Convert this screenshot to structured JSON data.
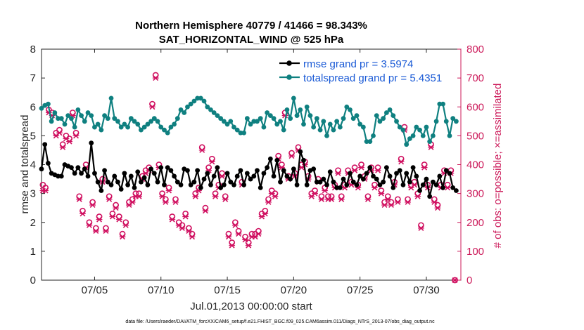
{
  "chart_data": {
    "type": "line",
    "title_line1": "Northern Hemisphere 40779 / 41466 = 98.343%",
    "title_line2": "SAT_HORIZONTAL_WIND @ 525 hPa",
    "ylabel_left": "rmse and totalspread",
    "ylabel_right": "# of obs: o=possible; ×=assimilated",
    "xlabel": "Jul.01,2013 00:00:00 start",
    "footnote": "data file: /Users/raeder/DAI/ATM_forcXX/CAM6_setup/f.e21.FHIST_BGC.f09_025.CAM6assim.011/Diags_NTrS_2013-07/obs_diag_output.nc",
    "x_range": [
      1,
      32.6
    ],
    "xticks": [
      5,
      10,
      15,
      20,
      25,
      30
    ],
    "xtick_labels": [
      "07/05",
      "07/10",
      "07/15",
      "07/20",
      "07/25",
      "07/30"
    ],
    "ylim_left": [
      0,
      8
    ],
    "yticks_left": [
      "0",
      "1",
      "2",
      "3",
      "4",
      "5",
      "6",
      "7",
      "8"
    ],
    "ylim_right": [
      0,
      800
    ],
    "yticks_right": [
      "0",
      "100",
      "200",
      "300",
      "400",
      "500",
      "600",
      "700",
      "800"
    ],
    "colors": {
      "rmse": "#000000",
      "spread": "#0f8080",
      "obs": "#d01060",
      "axis": "#262626"
    },
    "series": [
      {
        "name": "rmse",
        "legend": "rmse grand pr = 3.5974",
        "step": 0.25,
        "x0": 1.0,
        "values": [
          3.85,
          4.7,
          4.05,
          3.7,
          3.65,
          3.6,
          3.6,
          4.0,
          3.95,
          3.9,
          3.7,
          3.9,
          3.7,
          3.85,
          3.6,
          4.75,
          3.7,
          3.4,
          3.1,
          3.8,
          3.4,
          3.3,
          3.6,
          3.4,
          3.15,
          3.7,
          3.3,
          3.6,
          3.2,
          3.75,
          3.4,
          3.55,
          3.3,
          3.85,
          3.7,
          3.4,
          3.9,
          3.3,
          3.9,
          3.8,
          3.6,
          3.4,
          3.3,
          3.85,
          3.8,
          3.3,
          3.4,
          3.8,
          3.2,
          3.5,
          3.7,
          3.3,
          3.6,
          3.9,
          3.2,
          3.3,
          3.7,
          3.4,
          3.3,
          3.6,
          3.8,
          3.3,
          3.7,
          3.5,
          3.6,
          3.8,
          3.2,
          3.7,
          3.9,
          4.2,
          3.6,
          4.15,
          3.4,
          3.8,
          3.6,
          3.5,
          3.85,
          3.3,
          4.45,
          4.15,
          3.3,
          3.8,
          3.85,
          3.4,
          3.4,
          3.5,
          3.3,
          3.75,
          3.4,
          3.2,
          3.2,
          3.5,
          3.3,
          3.7,
          3.4,
          3.3,
          3.6,
          3.5,
          3.7,
          3.9,
          3.6,
          3.5,
          3.3,
          3.4,
          3.9,
          3.6,
          3.2,
          3.7,
          3.8,
          3.3,
          3.7,
          3.4,
          3.9,
          3.6,
          3.1,
          3.3,
          3.5,
          2.9,
          3.4,
          3.3,
          3.6,
          3.2,
          3.8,
          3.7,
          3.2,
          3.1
        ]
      },
      {
        "name": "totalspread",
        "legend": "totalspread grand pr = 5.4351",
        "step": 0.25,
        "x0": 1.0,
        "values": [
          5.95,
          6.05,
          6.1,
          5.5,
          5.8,
          5.6,
          5.6,
          5.4,
          5.7,
          5.6,
          5.3,
          5.9,
          5.7,
          5.5,
          5.8,
          5.7,
          5.3,
          5.4,
          5.2,
          5.7,
          5.6,
          6.3,
          5.6,
          5.5,
          5.3,
          5.4,
          5.3,
          5.6,
          5.5,
          5.4,
          5.2,
          5.3,
          5.4,
          5.5,
          5.6,
          5.5,
          5.3,
          5.2,
          5.1,
          5.3,
          5.4,
          5.6,
          5.9,
          5.8,
          6.0,
          6.1,
          6.2,
          6.3,
          6.3,
          6.2,
          6.0,
          5.9,
          5.8,
          5.7,
          5.6,
          5.5,
          5.4,
          5.5,
          5.3,
          5.2,
          5.1,
          5.1,
          5.6,
          5.4,
          5.5,
          5.5,
          5.6,
          5.3,
          5.8,
          5.7,
          5.6,
          5.4,
          5.5,
          5.2,
          5.9,
          5.6,
          6.3,
          5.7,
          5.9,
          5.4,
          6.0,
          5.7,
          5.3,
          5.6,
          5.2,
          5.5,
          5.0,
          5.4,
          5.2,
          5.5,
          5.3,
          5.6,
          6.0,
          5.9,
          5.6,
          5.7,
          5.4,
          5.3,
          4.8,
          4.8,
          5.0,
          5.7,
          5.5,
          5.6,
          5.8,
          5.9,
          5.7,
          5.5,
          5.3,
          5.2,
          4.7,
          4.9,
          5.0,
          5.3,
          5.2,
          5.0,
          5.3,
          4.8,
          5.0,
          5.5,
          6.1,
          6.1,
          5.5,
          5.0,
          5.6,
          5.5
        ]
      }
    ],
    "obs_possible": {
      "marker": "o",
      "points": [
        [
          1.1,
          330
        ],
        [
          1.3,
          320
        ],
        [
          1.55,
          590
        ],
        [
          1.8,
          580
        ],
        [
          2.1,
          510
        ],
        [
          2.35,
          520
        ],
        [
          2.6,
          470
        ],
        [
          2.85,
          500
        ],
        [
          3.1,
          490
        ],
        [
          3.35,
          580
        ],
        [
          3.6,
          510
        ],
        [
          3.85,
          290
        ],
        [
          4.1,
          240
        ],
        [
          4.35,
          400
        ],
        [
          4.6,
          200
        ],
        [
          4.85,
          270
        ],
        [
          5.1,
          180
        ],
        [
          5.35,
          220
        ],
        [
          5.6,
          350
        ],
        [
          5.85,
          180
        ],
        [
          6.1,
          290
        ],
        [
          6.35,
          230
        ],
        [
          6.6,
          260
        ],
        [
          6.85,
          220
        ],
        [
          7.1,
          160
        ],
        [
          7.35,
          200
        ],
        [
          7.6,
          270
        ],
        [
          7.85,
          280
        ],
        [
          8.1,
          300
        ],
        [
          8.35,
          300
        ],
        [
          8.6,
          360
        ],
        [
          8.85,
          380
        ],
        [
          9.1,
          390
        ],
        [
          9.35,
          610
        ],
        [
          9.6,
          710
        ],
        [
          9.85,
          400
        ],
        [
          10.1,
          300
        ],
        [
          10.35,
          280
        ],
        [
          10.6,
          320
        ],
        [
          10.85,
          220
        ],
        [
          11.1,
          280
        ],
        [
          11.35,
          200
        ],
        [
          11.6,
          190
        ],
        [
          11.85,
          230
        ],
        [
          12.1,
          180
        ],
        [
          12.35,
          160
        ],
        [
          12.6,
          300
        ],
        [
          12.85,
          320
        ],
        [
          13.1,
          460
        ],
        [
          13.35,
          250
        ],
        [
          13.6,
          390
        ],
        [
          13.85,
          420
        ],
        [
          14.1,
          300
        ],
        [
          14.35,
          330
        ],
        [
          14.6,
          370
        ],
        [
          14.85,
          290
        ],
        [
          15.1,
          160
        ],
        [
          15.35,
          130
        ],
        [
          15.6,
          200
        ],
        [
          15.85,
          170
        ],
        [
          16.1,
          340
        ],
        [
          16.35,
          150
        ],
        [
          16.6,
          130
        ],
        [
          16.85,
          160
        ],
        [
          17.1,
          160
        ],
        [
          17.35,
          170
        ],
        [
          17.6,
          230
        ],
        [
          17.85,
          240
        ],
        [
          18.1,
          280
        ],
        [
          18.35,
          310
        ],
        [
          18.6,
          300
        ],
        [
          18.85,
          430
        ],
        [
          19.1,
          400
        ],
        [
          19.35,
          580
        ],
        [
          19.6,
          360
        ],
        [
          19.85,
          440
        ],
        [
          20.1,
          370
        ],
        [
          20.35,
          460
        ],
        [
          20.6,
          400
        ],
        [
          20.85,
          410
        ],
        [
          21.1,
          360
        ],
        [
          21.35,
          300
        ],
        [
          21.6,
          310
        ],
        [
          21.85,
          350
        ],
        [
          22.1,
          290
        ],
        [
          22.35,
          320
        ],
        [
          22.6,
          290
        ],
        [
          22.85,
          290
        ],
        [
          23.1,
          330
        ],
        [
          23.35,
          380
        ],
        [
          23.6,
          290
        ],
        [
          23.85,
          330
        ],
        [
          24.1,
          380
        ],
        [
          24.35,
          340
        ],
        [
          24.6,
          390
        ],
        [
          24.85,
          330
        ],
        [
          25.1,
          400
        ],
        [
          25.35,
          360
        ],
        [
          25.6,
          290
        ],
        [
          25.85,
          390
        ],
        [
          26.1,
          330
        ],
        [
          26.35,
          390
        ],
        [
          26.6,
          310
        ],
        [
          26.85,
          270
        ],
        [
          27.1,
          290
        ],
        [
          27.35,
          270
        ],
        [
          27.6,
          340
        ],
        [
          27.85,
          280
        ],
        [
          28.1,
          420
        ],
        [
          28.35,
          530
        ],
        [
          28.6,
          280
        ],
        [
          28.85,
          330
        ],
        [
          29.1,
          340
        ],
        [
          29.35,
          300
        ],
        [
          29.6,
          190
        ],
        [
          29.85,
          400
        ],
        [
          30.1,
          330
        ],
        [
          30.35,
          470
        ],
        [
          30.6,
          280
        ],
        [
          30.85,
          260
        ],
        [
          31.1,
          330
        ],
        [
          31.35,
          380
        ],
        [
          31.6,
          330
        ],
        [
          31.85,
          380
        ],
        [
          32.15,
          0
        ]
      ]
    },
    "obs_assimilated": {
      "marker": "x",
      "points": [
        [
          1.1,
          310
        ],
        [
          1.3,
          310
        ],
        [
          1.55,
          580
        ],
        [
          1.8,
          570
        ],
        [
          2.1,
          500
        ],
        [
          2.35,
          510
        ],
        [
          2.6,
          460
        ],
        [
          2.85,
          490
        ],
        [
          3.1,
          480
        ],
        [
          3.35,
          570
        ],
        [
          3.6,
          500
        ],
        [
          3.85,
          280
        ],
        [
          4.1,
          230
        ],
        [
          4.35,
          390
        ],
        [
          4.6,
          190
        ],
        [
          4.85,
          260
        ],
        [
          5.1,
          170
        ],
        [
          5.35,
          210
        ],
        [
          5.6,
          340
        ],
        [
          5.85,
          170
        ],
        [
          6.1,
          280
        ],
        [
          6.35,
          220
        ],
        [
          6.6,
          250
        ],
        [
          6.85,
          210
        ],
        [
          7.1,
          150
        ],
        [
          7.35,
          190
        ],
        [
          7.6,
          260
        ],
        [
          7.85,
          270
        ],
        [
          8.1,
          290
        ],
        [
          8.35,
          290
        ],
        [
          8.6,
          350
        ],
        [
          8.85,
          370
        ],
        [
          9.1,
          380
        ],
        [
          9.35,
          600
        ],
        [
          9.6,
          700
        ],
        [
          9.85,
          390
        ],
        [
          10.1,
          290
        ],
        [
          10.35,
          270
        ],
        [
          10.6,
          310
        ],
        [
          10.85,
          210
        ],
        [
          11.1,
          270
        ],
        [
          11.35,
          190
        ],
        [
          11.6,
          180
        ],
        [
          11.85,
          220
        ],
        [
          12.1,
          170
        ],
        [
          12.35,
          150
        ],
        [
          12.6,
          290
        ],
        [
          12.85,
          310
        ],
        [
          13.1,
          450
        ],
        [
          13.35,
          240
        ],
        [
          13.6,
          380
        ],
        [
          13.85,
          410
        ],
        [
          14.1,
          290
        ],
        [
          14.35,
          320
        ],
        [
          14.6,
          360
        ],
        [
          14.85,
          280
        ],
        [
          15.1,
          150
        ],
        [
          15.35,
          120
        ],
        [
          15.6,
          190
        ],
        [
          15.85,
          160
        ],
        [
          16.1,
          330
        ],
        [
          16.35,
          140
        ],
        [
          16.6,
          120
        ],
        [
          16.85,
          150
        ],
        [
          17.1,
          150
        ],
        [
          17.35,
          160
        ],
        [
          17.6,
          220
        ],
        [
          17.85,
          230
        ],
        [
          18.1,
          270
        ],
        [
          18.35,
          300
        ],
        [
          18.6,
          290
        ],
        [
          18.85,
          420
        ],
        [
          19.1,
          390
        ],
        [
          19.35,
          570
        ],
        [
          19.6,
          350
        ],
        [
          19.85,
          430
        ],
        [
          20.1,
          360
        ],
        [
          20.35,
          450
        ],
        [
          20.6,
          390
        ],
        [
          20.85,
          400
        ],
        [
          21.1,
          350
        ],
        [
          21.35,
          290
        ],
        [
          21.6,
          300
        ],
        [
          21.85,
          340
        ],
        [
          22.1,
          280
        ],
        [
          22.35,
          310
        ],
        [
          22.6,
          280
        ],
        [
          22.85,
          280
        ],
        [
          23.1,
          320
        ],
        [
          23.35,
          370
        ],
        [
          23.6,
          280
        ],
        [
          23.85,
          320
        ],
        [
          24.1,
          370
        ],
        [
          24.35,
          330
        ],
        [
          24.6,
          380
        ],
        [
          24.85,
          320
        ],
        [
          25.1,
          390
        ],
        [
          25.35,
          350
        ],
        [
          25.6,
          280
        ],
        [
          25.85,
          380
        ],
        [
          26.1,
          320
        ],
        [
          26.35,
          380
        ],
        [
          26.6,
          300
        ],
        [
          26.85,
          260
        ],
        [
          27.1,
          280
        ],
        [
          27.35,
          260
        ],
        [
          27.6,
          330
        ],
        [
          27.85,
          270
        ],
        [
          28.1,
          410
        ],
        [
          28.35,
          520
        ],
        [
          28.6,
          270
        ],
        [
          28.85,
          320
        ],
        [
          29.1,
          330
        ],
        [
          29.35,
          290
        ],
        [
          29.6,
          180
        ],
        [
          29.85,
          390
        ],
        [
          30.1,
          320
        ],
        [
          30.35,
          460
        ],
        [
          30.6,
          270
        ],
        [
          30.85,
          250
        ],
        [
          31.1,
          320
        ],
        [
          31.35,
          370
        ],
        [
          31.6,
          320
        ],
        [
          31.85,
          370
        ],
        [
          32.15,
          0
        ]
      ]
    }
  }
}
